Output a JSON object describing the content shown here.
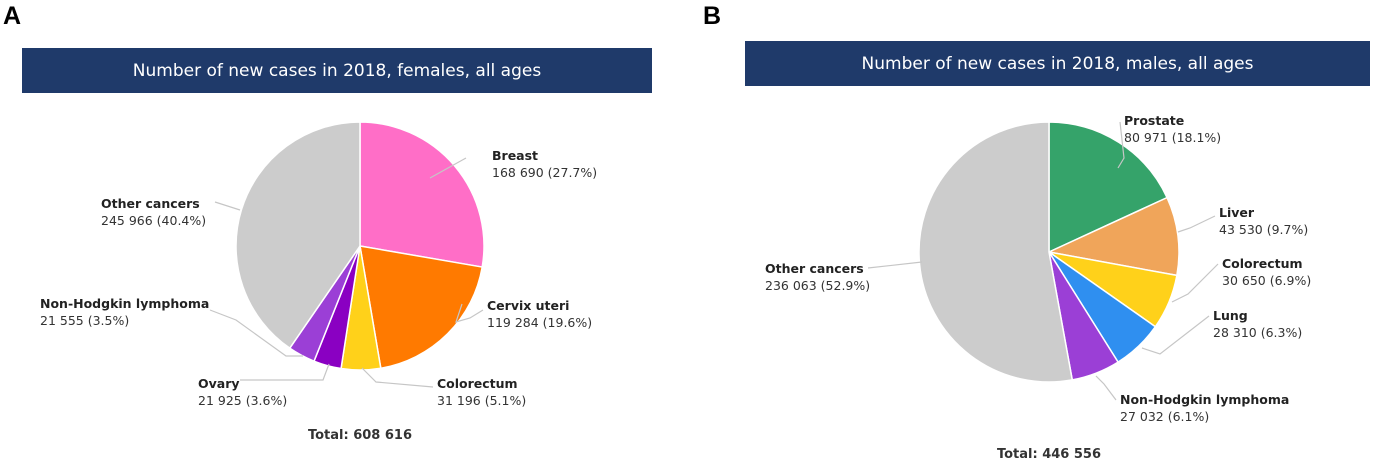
{
  "panels": [
    {
      "letter": "A",
      "title": "Number of new cases in 2018, females, all ages",
      "total": "Total: 608 616"
    },
    {
      "letter": "B",
      "title": "Number of new cases in 2018, males, all ages",
      "total": "Total: 446 556"
    }
  ],
  "chart_data": [
    {
      "type": "pie",
      "title": "Number of new cases in 2018, females, all ages",
      "total": 608616,
      "slices": [
        {
          "name": "Breast",
          "value": 168690,
          "percent": 27.7,
          "label": "168 690 (27.7%)",
          "color": "#ff6ec7"
        },
        {
          "name": "Cervix uteri",
          "value": 119284,
          "percent": 19.6,
          "label": "119 284 (19.6%)",
          "color": "#ff7a00"
        },
        {
          "name": "Colorectum",
          "value": 31196,
          "percent": 5.1,
          "label": "31 196 (5.1%)",
          "color": "#ffd11a"
        },
        {
          "name": "Ovary",
          "value": 21925,
          "percent": 3.6,
          "label": "21 925 (3.6%)",
          "color": "#8a00c2"
        },
        {
          "name": "Non-Hodgkin lymphoma",
          "value": 21555,
          "percent": 3.5,
          "label": "21 555 (3.5%)",
          "color": "#9b3fd6"
        },
        {
          "name": "Other cancers",
          "value": 245966,
          "percent": 40.4,
          "label": "245 966 (40.4%)",
          "color": "#cccccc"
        }
      ]
    },
    {
      "type": "pie",
      "title": "Number of new cases in 2018, males, all ages",
      "total": 446556,
      "slices": [
        {
          "name": "Prostate",
          "value": 80971,
          "percent": 18.1,
          "label": "80 971 (18.1%)",
          "color": "#35a36a"
        },
        {
          "name": "Liver",
          "value": 43530,
          "percent": 9.7,
          "label": "43 530 (9.7%)",
          "color": "#f0a55a"
        },
        {
          "name": "Colorectum",
          "value": 30650,
          "percent": 6.9,
          "label": "30 650 (6.9%)",
          "color": "#ffd11a"
        },
        {
          "name": "Lung",
          "value": 28310,
          "percent": 6.3,
          "label": "28 310 (6.3%)",
          "color": "#2f8ff0"
        },
        {
          "name": "Non-Hodgkin lymphoma",
          "value": 27032,
          "percent": 6.1,
          "label": "27 032 (6.1%)",
          "color": "#9b3fd6"
        },
        {
          "name": "Other cancers",
          "value": 236063,
          "percent": 52.9,
          "label": "236 063 (52.9%)",
          "color": "#cccccc"
        }
      ]
    }
  ]
}
